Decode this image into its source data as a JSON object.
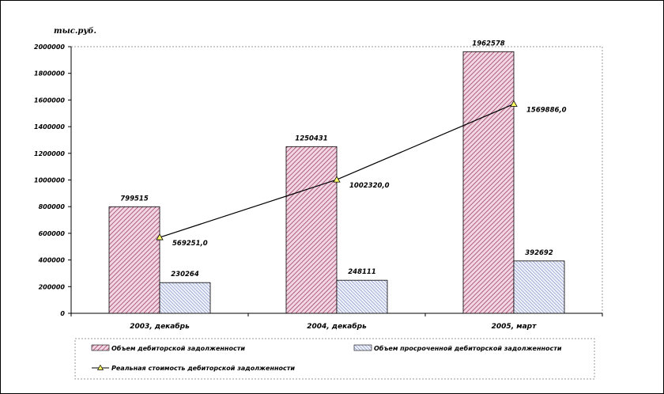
{
  "chart_data": {
    "type": "bar",
    "unit_label": "тыс.руб.",
    "categories": [
      "2003, декабрь",
      "2004, декабрь",
      "2005, март"
    ],
    "ylim": [
      0,
      2000000
    ],
    "yticks": [
      0,
      200000,
      400000,
      600000,
      800000,
      1000000,
      1200000,
      1400000,
      1600000,
      1800000,
      2000000
    ],
    "ytick_labels": [
      "0",
      "200000",
      "400000",
      "600000",
      "800000",
      "1000000",
      "1200000",
      "1400000",
      "1600000",
      "1800000",
      "2000000"
    ],
    "grid": false,
    "legend_position": "bottom",
    "series": [
      {
        "name": "Объем дебиторской задолженности",
        "kind": "bar",
        "color": "#a0406a",
        "fill": "#f2d7e2",
        "pattern": "diagonal-hatch",
        "values": [
          799515,
          1250431,
          1962578
        ],
        "labels": [
          "799515",
          "1250431",
          "1962578"
        ]
      },
      {
        "name": "Объем просроченной дебиторской задолженности",
        "kind": "bar",
        "color": "#5a6bb0",
        "fill": "#e6e9f6",
        "pattern": "diagonal-hatch",
        "values": [
          230264,
          248111,
          392692
        ],
        "labels": [
          "230264",
          "248111",
          "392692"
        ]
      },
      {
        "name": "Реальная стоимость дебиторской задолженности",
        "kind": "line",
        "color": "#000000",
        "marker_color": "#ffff66",
        "values": [
          569251.0,
          1002320.0,
          1569886.0
        ],
        "labels": [
          "569251,0",
          "1002320,0",
          "1569886,0"
        ]
      }
    ]
  }
}
